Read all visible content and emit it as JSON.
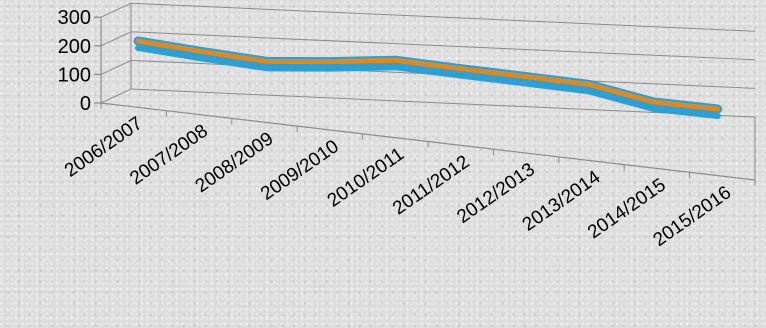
{
  "chart_data": {
    "type": "line",
    "style": "3d-ribbon",
    "categories": [
      "2006/2007",
      "2007/2008",
      "2008/2009",
      "2009/2010",
      "2010/2011",
      "2011/2012",
      "2012/2013",
      "2013/2014",
      "2014/2015",
      "2015/2016"
    ],
    "series": [
      {
        "values": [
          190,
          163,
          139,
          148,
          163,
          144,
          127,
          109,
          58,
          43
        ]
      }
    ],
    "yticks": [
      0,
      100,
      200,
      300
    ],
    "ylim": [
      0,
      300
    ],
    "title": "",
    "xlabel": "",
    "ylabel": "",
    "legend": "none",
    "grid": true,
    "colors": {
      "ribbon_top": "#d98b2a",
      "ribbon_edge": "#2e9fd0",
      "grid": "#8c8c8c"
    }
  }
}
